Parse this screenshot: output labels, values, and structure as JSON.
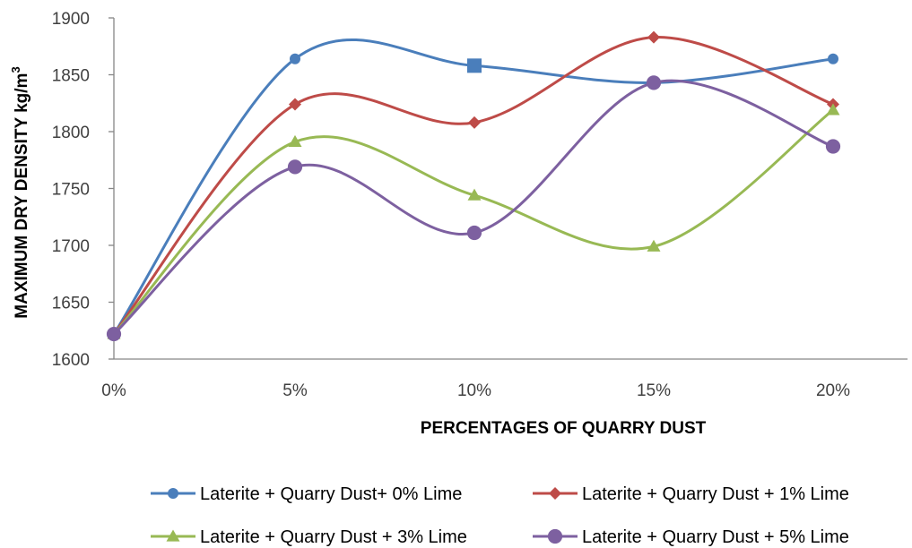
{
  "chart_data": {
    "type": "line",
    "smooth": true,
    "categories": [
      "0%",
      "5%",
      "10%",
      "15%",
      "20%"
    ],
    "xlabel": "PERCENTAGES OF QUARRY DUST",
    "ylabel": "MAXIMUM DRY DENSITY kg/m",
    "ylabel_superscript": "3",
    "ylim": [
      1600,
      1900
    ],
    "yticks": [
      1600,
      1650,
      1700,
      1750,
      1800,
      1850,
      1900
    ],
    "grid": false,
    "legend_position": "bottom",
    "series": [
      {
        "name": "Laterite + Quarry Dust+ 0% Lime",
        "color": "#4a7ebb",
        "marker": "circle",
        "values": [
          1622,
          1864,
          1858,
          1843,
          1864
        ]
      },
      {
        "name": "Laterite + Quarry Dust + 1% Lime",
        "color": "#be4b48",
        "marker": "diamond",
        "values": [
          1622,
          1824,
          1808,
          1883,
          1824
        ]
      },
      {
        "name": "Laterite + Quarry Dust + 3% Lime",
        "color": "#98b954",
        "marker": "triangle",
        "values": [
          1622,
          1791,
          1744,
          1699,
          1819
        ]
      },
      {
        "name": "Laterite + Quarry Dust + 5% Lime",
        "color": "#7d60a0",
        "marker": "circle",
        "values": [
          1622,
          1769,
          1711,
          1843,
          1787
        ]
      }
    ],
    "highlighted_points": [
      {
        "series_index": 0,
        "point_index": 2,
        "marker": "square"
      }
    ]
  }
}
